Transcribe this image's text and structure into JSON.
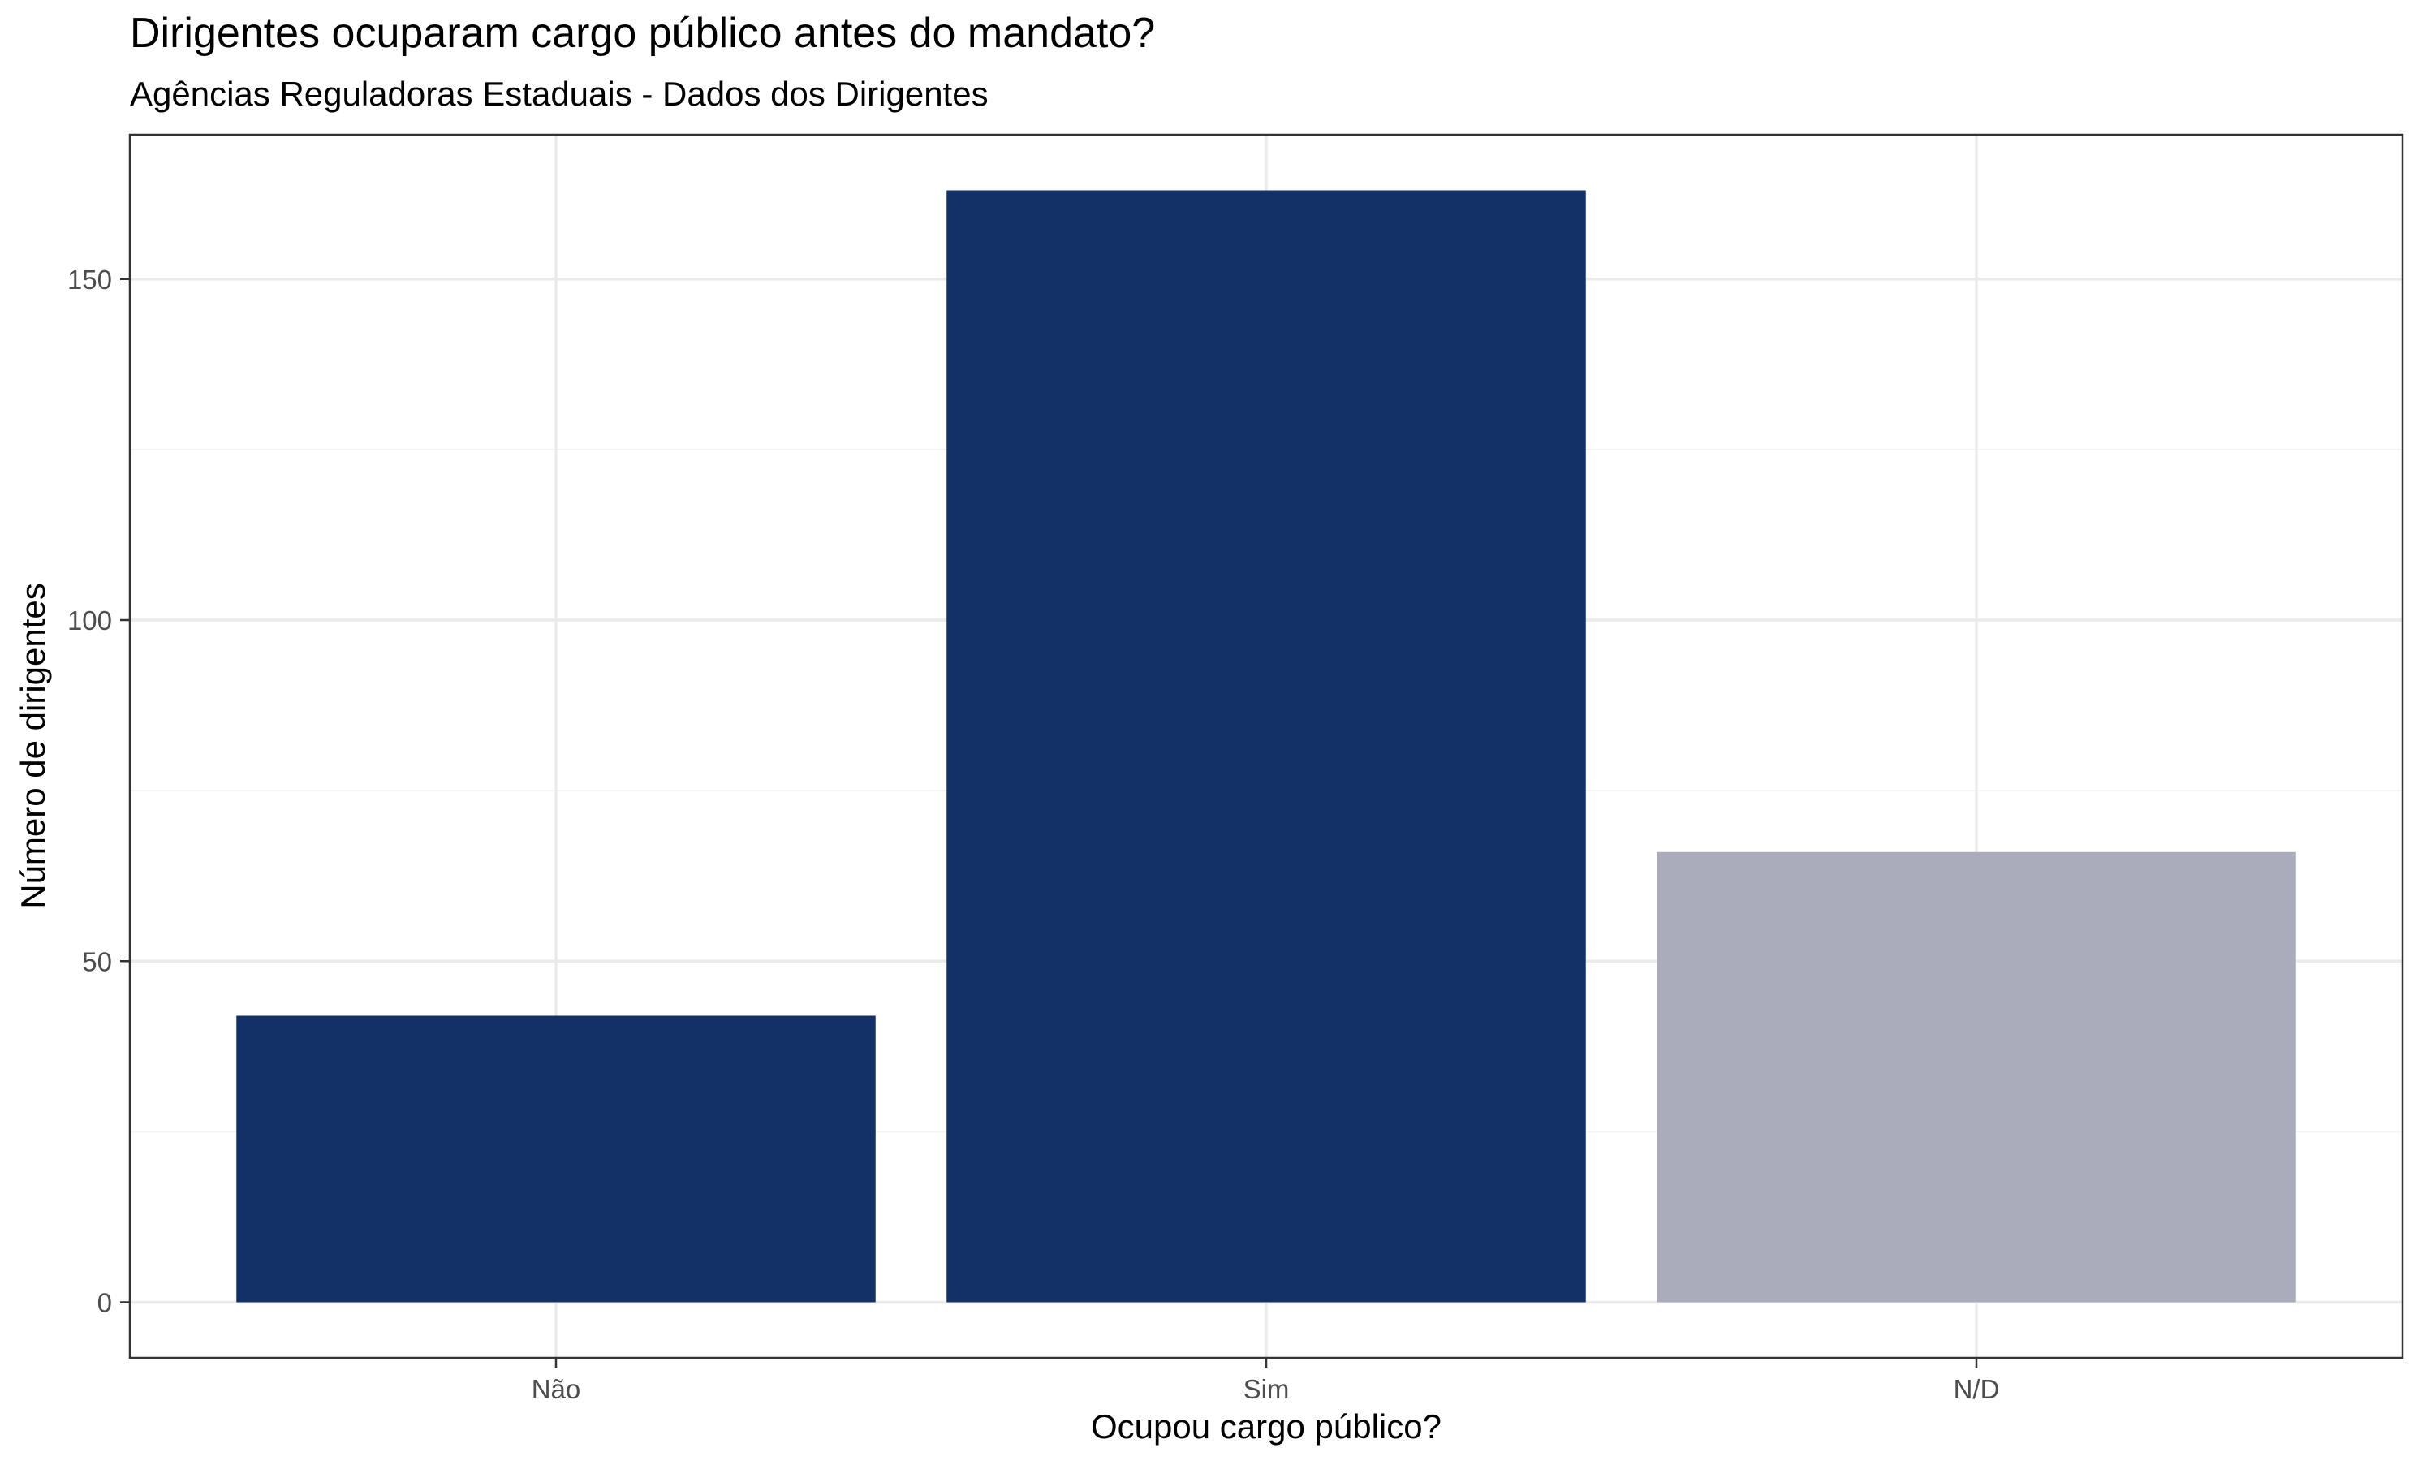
{
  "chart_data": {
    "type": "bar",
    "title": "Dirigentes ocuparam cargo público antes do mandato?",
    "subtitle": "Agências Reguladoras Estaduais - Dados dos Dirigentes",
    "xlabel": "Ocupou cargo público?",
    "ylabel": "Número de dirigentes",
    "categories": [
      "Não",
      "Sim",
      "N/D"
    ],
    "values": [
      42,
      163,
      66
    ],
    "bar_colors": [
      "#133067",
      "#133067",
      "#aaabbb"
    ],
    "ylim": [
      -8.15,
      171.15
    ],
    "y_ticks": [
      0,
      50,
      100,
      150
    ],
    "y_minor_ticks": [
      25,
      75,
      125
    ],
    "grid": true,
    "legend": "none"
  },
  "colors": {
    "background": "#ffffff",
    "panel_border": "#333333",
    "grid_major": "#ebebeb",
    "grid_minor": "#f4f4f4",
    "tick_text": "#4d4d4d",
    "axis_title": "#000000"
  }
}
